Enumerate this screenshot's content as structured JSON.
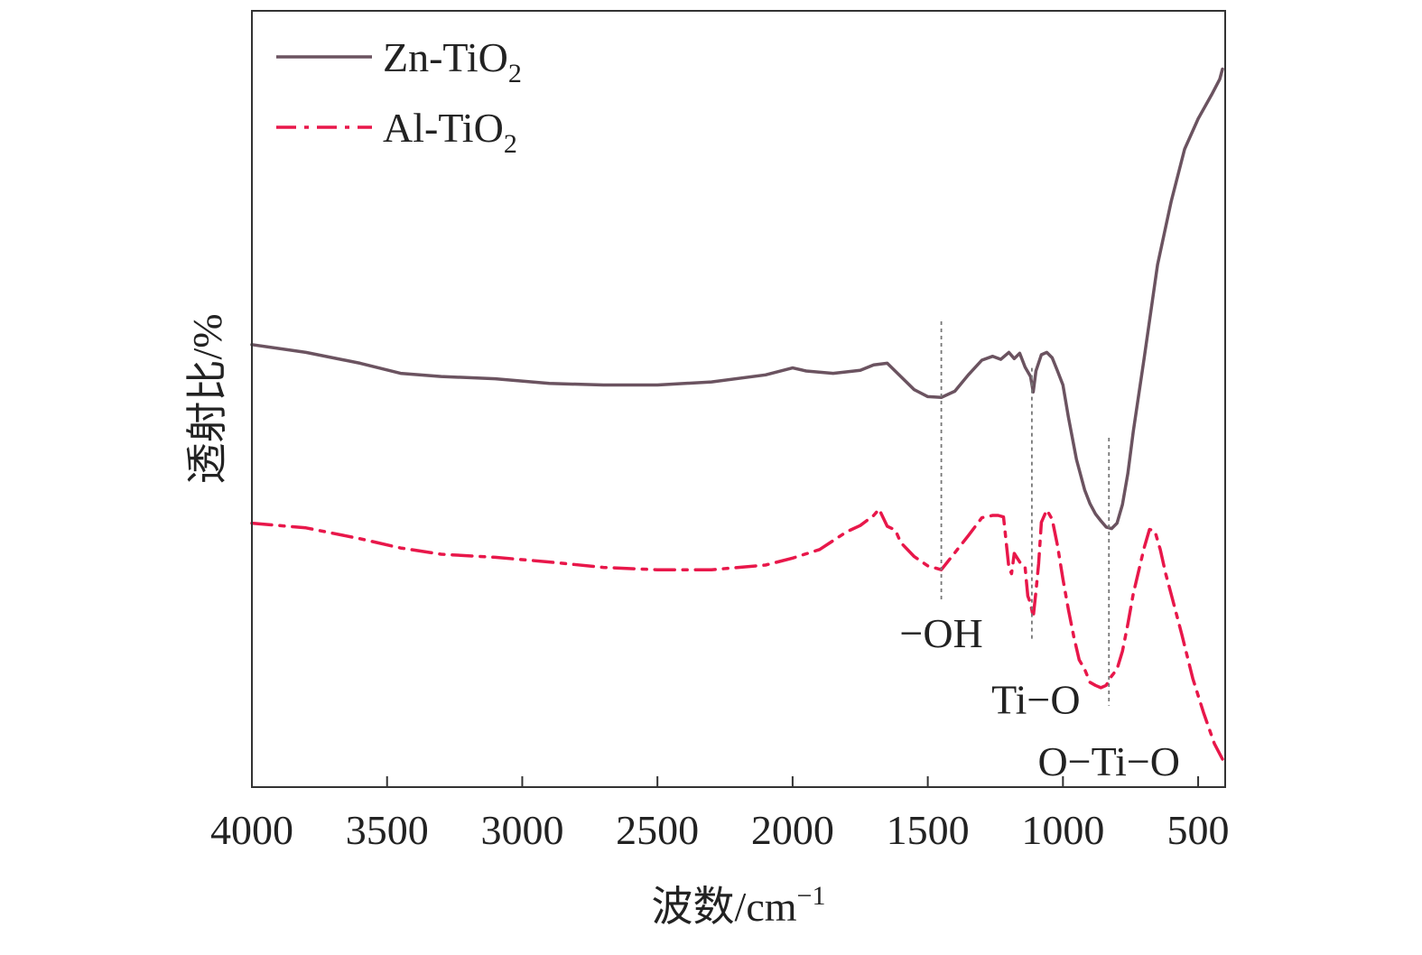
{
  "chart_data": {
    "type": "line",
    "xlabel": "波数/cm",
    "xlabel_sup": "−1",
    "ylabel": "透射比/%",
    "xlim": [
      4000,
      400
    ],
    "x_reversed": true,
    "ylim": [
      0,
      100
    ],
    "y_ticks_shown": false,
    "grid": false,
    "legend_placement": "top-left",
    "x_ticks": [
      "4000",
      "3500",
      "3000",
      "2500",
      "2000",
      "1500",
      "1000",
      "500"
    ],
    "series": [
      {
        "name": "Zn-TiO",
        "name_sub": "2",
        "style": "solid",
        "color": "#6b5360",
        "x": [
          4000,
          3800,
          3600,
          3450,
          3300,
          3100,
          2900,
          2700,
          2500,
          2300,
          2100,
          2000,
          1950,
          1850,
          1750,
          1700,
          1650,
          1600,
          1550,
          1500,
          1450,
          1400,
          1350,
          1300,
          1260,
          1230,
          1200,
          1180,
          1160,
          1140,
          1120,
          1110,
          1100,
          1080,
          1060,
          1040,
          1020,
          1000,
          980,
          950,
          920,
          900,
          880,
          860,
          840,
          820,
          800,
          780,
          760,
          740,
          700,
          650,
          600,
          550,
          500,
          450,
          420,
          410
        ],
        "y": [
          57.0,
          56.0,
          54.6,
          53.3,
          52.9,
          52.6,
          52.0,
          51.8,
          51.8,
          52.2,
          53.1,
          54.0,
          53.6,
          53.3,
          53.7,
          54.4,
          54.6,
          52.9,
          51.2,
          50.3,
          50.2,
          51.0,
          53.1,
          55.0,
          55.5,
          55.1,
          56.0,
          55.2,
          55.9,
          54.1,
          52.9,
          50.9,
          53.6,
          55.7,
          56.0,
          55.3,
          53.6,
          51.8,
          47.7,
          42.2,
          38.3,
          36.5,
          35.2,
          34.3,
          33.5,
          33.3,
          34.0,
          36.4,
          40.4,
          45.8,
          55.2,
          67.3,
          75.4,
          82.2,
          86.1,
          89.2,
          91.2,
          92.5
        ]
      },
      {
        "name": "Al-TiO",
        "name_sub": "2",
        "style": "dashdot",
        "color": "#e8174a",
        "x": [
          4000,
          3800,
          3600,
          3450,
          3300,
          3100,
          2900,
          2700,
          2500,
          2300,
          2100,
          2000,
          1900,
          1800,
          1750,
          1700,
          1680,
          1650,
          1620,
          1600,
          1550,
          1500,
          1450,
          1400,
          1350,
          1300,
          1260,
          1240,
          1220,
          1200,
          1190,
          1180,
          1160,
          1140,
          1130,
          1120,
          1110,
          1100,
          1090,
          1080,
          1060,
          1040,
          1020,
          1000,
          980,
          960,
          940,
          920,
          900,
          880,
          860,
          840,
          820,
          800,
          780,
          760,
          740,
          700,
          680,
          660,
          640,
          620,
          600,
          560,
          520,
          480,
          440,
          410
        ],
        "y": [
          34.0,
          33.4,
          32.0,
          30.8,
          30.0,
          29.6,
          29.0,
          28.3,
          28.0,
          28.0,
          28.6,
          29.5,
          30.6,
          32.9,
          33.7,
          35.0,
          35.8,
          33.6,
          33.1,
          31.5,
          29.7,
          28.5,
          28.0,
          30.2,
          32.4,
          34.7,
          35.0,
          35.0,
          34.8,
          28.3,
          27.5,
          30.1,
          29.0,
          28.3,
          24.6,
          23.7,
          21.9,
          25.2,
          28.8,
          34.1,
          35.7,
          34.5,
          31.1,
          26.8,
          22.9,
          19.4,
          16.4,
          15.2,
          13.5,
          13.1,
          12.8,
          13.1,
          14.3,
          15.2,
          17.5,
          21.0,
          24.9,
          30.8,
          33.2,
          33.0,
          30.6,
          27.5,
          24.9,
          19.6,
          14.0,
          9.6,
          5.6,
          3.6
        ]
      }
    ],
    "annotations": [
      {
        "text": "−OH",
        "x": 1450,
        "y": 18.0
      },
      {
        "text": "Ti−O",
        "x": 1100,
        "y": 9.5
      },
      {
        "text": "O−Ti−O",
        "x": 830,
        "y": 1.5
      }
    ],
    "reference_lines": [
      {
        "x": 1450,
        "y_from": 24,
        "y_to": 60
      },
      {
        "x": 1115,
        "y_from": 19,
        "y_to": 54
      },
      {
        "x": 830,
        "y_from": 10.5,
        "y_to": 45
      }
    ]
  }
}
